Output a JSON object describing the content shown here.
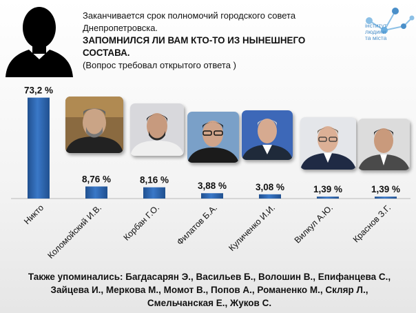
{
  "header": {
    "line1": "Заканчивается срок полномочий городского совета",
    "line2": "Днепропетровска.",
    "question": "ЗАПОМНИЛСЯ ЛИ ВАМ КТО-ТО ИЗ НЫНЕШНЕГО СОСТАВА.",
    "note": "(Вопрос требовал открытого ответа )"
  },
  "logo": {
    "lines": [
      "інститут",
      "людини",
      "та міста"
    ]
  },
  "colors": {
    "bar": "#3a78c8",
    "bar_dark": "#20508f",
    "text": "#111111"
  },
  "chart_data": {
    "type": "bar",
    "title": "ЗАПОМНИЛСЯ ЛИ ВАМ КТО-ТО ИЗ НЫНЕШНЕГО СОСТАВА.",
    "categories": [
      "Никто",
      "Коломойский И.В.",
      "Корбан Г.О.",
      "Филатов Б.А.",
      "Куличенко И.И.",
      "Вилкул А.Ю.",
      "Краснов З.Г."
    ],
    "values": [
      73.2,
      8.76,
      8.16,
      3.88,
      3.08,
      1.39,
      1.39
    ],
    "data_labels": [
      "73,2 %",
      "8,76 %",
      "8,16 %",
      "3,88 %",
      "3,08 %",
      "1,39 %",
      "1,39 %"
    ],
    "ylim": [
      0,
      80
    ],
    "xlabel": "",
    "ylabel": "",
    "grid": false
  },
  "footer": {
    "line1": "Также упоминались: Багдасарян Э., Васильев Б., Волошин В., Епифанцева С.,",
    "line2": "Зайцева И., Меркова М., Момот В., Попов А., Романенко М., Скляр Л.,",
    "line3": "Смельчанская Е., Жуков С."
  }
}
